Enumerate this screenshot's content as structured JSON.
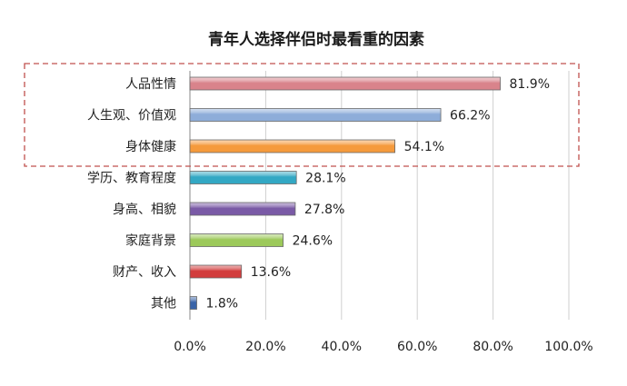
{
  "chart_data": {
    "type": "bar",
    "orientation": "horizontal",
    "title": "青年人选择伴侣时最看重的因素",
    "categories": [
      "人品性情",
      "人生观、价值观",
      "身体健康",
      "学历、教育程度",
      "身高、相貌",
      "家庭背景",
      "财产、收入",
      "其他"
    ],
    "values": [
      81.9,
      66.2,
      54.1,
      28.1,
      27.8,
      24.6,
      13.6,
      1.8
    ],
    "value_labels": [
      "81.9%",
      "66.2%",
      "54.1%",
      "28.1%",
      "27.8%",
      "24.6%",
      "13.6%",
      "1.8%"
    ],
    "colors": [
      "#d9838b",
      "#8eadd9",
      "#f59a3c",
      "#33a8c4",
      "#7a5aa6",
      "#9cc95a",
      "#d23d3d",
      "#3a64a8"
    ],
    "xlim": [
      0,
      100
    ],
    "xticks": [
      0,
      20,
      40,
      60,
      80,
      100
    ],
    "xtick_labels": [
      "0.0%",
      "20.0%",
      "40.0%",
      "60.0%",
      "80.0%",
      "100.0%"
    ],
    "grid": true,
    "legend": "none",
    "highlight": {
      "categories": [
        "人品性情",
        "人生观、价值观",
        "身体健康"
      ],
      "style": "dashed-box",
      "color": "#c0504d"
    }
  }
}
